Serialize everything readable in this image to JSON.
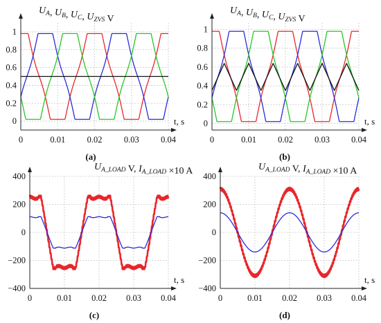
{
  "chart_data": [
    {
      "id": "a",
      "type": "line",
      "caption": "(a)",
      "title_parts": [
        {
          "t": "U",
          "i": true
        },
        {
          "t": "A",
          "sub": true
        },
        {
          "t": ", ",
          "i": false
        },
        {
          "t": "U",
          "i": true
        },
        {
          "t": "B",
          "sub": true
        },
        {
          "t": ", ",
          "i": false
        },
        {
          "t": "U",
          "i": true
        },
        {
          "t": "C",
          "sub": true
        },
        {
          "t": ", ",
          "i": false
        },
        {
          "t": "U",
          "i": true
        },
        {
          "t": "ZVS",
          "sub": true
        },
        {
          "t": " V",
          "i": false
        }
      ],
      "xlabel": "t, s",
      "xlim": [
        0,
        0.04
      ],
      "ylim": [
        -0.1,
        1.1
      ],
      "xticks": [
        0,
        0.01,
        0.02,
        0.03,
        0.04
      ],
      "xtick_labels": [
        "0",
        "0.01",
        "0.02",
        "0.03",
        "0.04"
      ],
      "yticks": [
        0,
        0.2,
        0.4,
        0.6,
        0.8,
        1
      ],
      "ytick_labels": [
        "0",
        "0.2",
        "0.4",
        "0.6",
        "0.8",
        "1"
      ],
      "period": 0.02,
      "series": [
        {
          "color": "#e8262a",
          "phase_deg": 0,
          "form": "rect_sine",
          "lo": 0.02,
          "hi": 0.98
        },
        {
          "color": "#2a2ad8",
          "phase_deg": 120,
          "form": "rect_sine",
          "lo": 0.02,
          "hi": 0.98
        },
        {
          "color": "#25c825",
          "phase_deg": 240,
          "form": "rect_sine",
          "lo": 0.02,
          "hi": 0.98
        },
        {
          "color": "#111111",
          "form": "constant",
          "value": 0.5
        }
      ]
    },
    {
      "id": "b",
      "type": "line",
      "caption": "(b)",
      "title_parts": [
        {
          "t": "U",
          "i": true
        },
        {
          "t": "A",
          "sub": true
        },
        {
          "t": ", ",
          "i": false
        },
        {
          "t": "U",
          "i": true
        },
        {
          "t": "B",
          "sub": true
        },
        {
          "t": ", ",
          "i": false
        },
        {
          "t": "U",
          "i": true
        },
        {
          "t": "C",
          "sub": true
        },
        {
          "t": ", ",
          "i": false
        },
        {
          "t": "U",
          "i": true
        },
        {
          "t": "ZVS",
          "sub": true
        },
        {
          "t": " V",
          "i": false
        }
      ],
      "xlabel": "t, s",
      "xlim": [
        0,
        0.04
      ],
      "ylim": [
        -0.07,
        1.07
      ],
      "xticks": [
        0,
        0.01,
        0.02,
        0.03,
        0.04
      ],
      "xtick_labels": [
        "0",
        "0.01",
        "0.02",
        "0.03",
        "0.04"
      ],
      "yticks": [
        0,
        0.2,
        0.4,
        0.6,
        0.8,
        1
      ],
      "ytick_labels": [
        "0",
        "0.2",
        "0.4",
        "0.6",
        "0.8",
        "1"
      ],
      "period": 0.02,
      "series": [
        {
          "color": "#e8262a",
          "phase_deg": 0,
          "form": "rect_sine",
          "lo": 0.02,
          "hi": 0.98
        },
        {
          "color": "#2a2ad8",
          "phase_deg": 120,
          "form": "rect_sine",
          "lo": 0.02,
          "hi": 0.98
        },
        {
          "color": "#25c825",
          "phase_deg": 240,
          "form": "rect_sine",
          "lo": 0.02,
          "hi": 0.98
        },
        {
          "color": "#111111",
          "form": "triangle",
          "min": 0.35,
          "max": 0.64,
          "peaks": [
            0.00333,
            0.01,
            0.01667,
            0.02333,
            0.03,
            0.03667
          ],
          "valleys": [
            0,
            0.00667,
            0.01333,
            0.02,
            0.02667,
            0.03333,
            0.04
          ]
        }
      ]
    },
    {
      "id": "c",
      "type": "line",
      "caption": "(c)",
      "title_parts": [
        {
          "t": "U",
          "i": true
        },
        {
          "t": "A_LOAD",
          "sub": true
        },
        {
          "t": " V, ",
          "i": false
        },
        {
          "t": "I",
          "i": true
        },
        {
          "t": "A_LOAD",
          "sub": true
        },
        {
          "t": " ×10 A",
          "i": false
        }
      ],
      "xlabel": "t, s",
      "xlim": [
        0,
        0.04
      ],
      "ylim": [
        -400,
        400
      ],
      "xticks": [
        0,
        0.01,
        0.02,
        0.03,
        0.04
      ],
      "xtick_labels": [
        "0",
        "0.01",
        "0.02",
        "0.03",
        "0.04"
      ],
      "yticks": [
        -400,
        -200,
        0,
        200,
        400
      ],
      "ytick_labels": [
        "−400",
        "−200",
        "0",
        "200",
        "400"
      ],
      "period": 0.02,
      "series": [
        {
          "color": "#e8262a",
          "form": "flat_top",
          "amplitude": 255,
          "ripple": 9,
          "width": 2.6
        },
        {
          "color": "#2a2ad8",
          "form": "flat_top",
          "amplitude": 112,
          "ripple": 0,
          "width": 1.3
        }
      ]
    },
    {
      "id": "d",
      "type": "line",
      "caption": "(d)",
      "title_parts": [
        {
          "t": "U",
          "i": true
        },
        {
          "t": "A_LOAD",
          "sub": true
        },
        {
          "t": " V, ",
          "i": false
        },
        {
          "t": "I",
          "i": true
        },
        {
          "t": "A_LOAD",
          "sub": true
        },
        {
          "t": " ×10 A",
          "i": false
        }
      ],
      "xlabel": "t, s",
      "xlim": [
        0,
        0.04
      ],
      "ylim": [
        -400,
        400
      ],
      "xticks": [
        0,
        0.01,
        0.02,
        0.03,
        0.04
      ],
      "xtick_labels": [
        "0",
        "0.01",
        "0.02",
        "0.03",
        "0.04"
      ],
      "yticks": [
        -400,
        -200,
        0,
        200,
        400
      ],
      "ytick_labels": [
        "−400",
        "−200",
        "0",
        "200",
        "400"
      ],
      "period": 0.02,
      "series": [
        {
          "color": "#e8262a",
          "form": "sine",
          "amplitude": 310,
          "ripple": 10,
          "width": 2.6
        },
        {
          "color": "#2a2ad8",
          "form": "sine",
          "amplitude": 140,
          "ripple": 0,
          "width": 1.3
        }
      ]
    }
  ]
}
